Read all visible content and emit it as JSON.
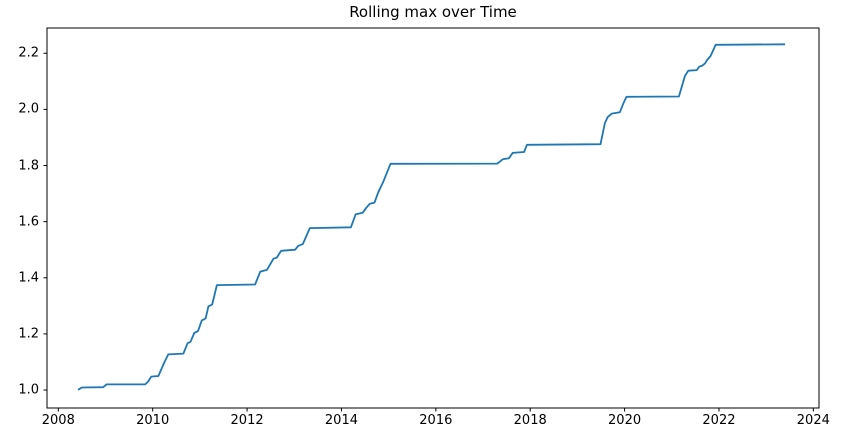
{
  "chart_data": {
    "type": "line",
    "title": "Rolling max over Time",
    "xlabel": "",
    "ylabel": "",
    "grid": false,
    "legend": "none",
    "x_ticks": [
      2008,
      2010,
      2012,
      2014,
      2016,
      2018,
      2020,
      2022,
      2024
    ],
    "y_ticks": [
      1.0,
      1.2,
      1.4,
      1.6,
      1.8,
      2.0,
      2.2
    ],
    "xlim": [
      2007.76,
      2024.12
    ],
    "ylim": [
      0.936,
      2.29
    ],
    "colors": {
      "line": "#1f77b4",
      "background": "#ffffff",
      "axes": "#000000",
      "tick_text": "#000000"
    },
    "series": [
      {
        "name": "rolling-max",
        "points": [
          [
            2008.42,
            1.001
          ],
          [
            2008.5,
            1.009
          ],
          [
            2008.95,
            1.01
          ],
          [
            2009.02,
            1.02
          ],
          [
            2009.84,
            1.02
          ],
          [
            2009.9,
            1.03
          ],
          [
            2009.97,
            1.048
          ],
          [
            2010.12,
            1.05
          ],
          [
            2010.25,
            1.1
          ],
          [
            2010.33,
            1.127
          ],
          [
            2010.65,
            1.13
          ],
          [
            2010.74,
            1.167
          ],
          [
            2010.8,
            1.172
          ],
          [
            2010.88,
            1.203
          ],
          [
            2010.96,
            1.21
          ],
          [
            2011.04,
            1.248
          ],
          [
            2011.12,
            1.255
          ],
          [
            2011.18,
            1.298
          ],
          [
            2011.26,
            1.305
          ],
          [
            2011.36,
            1.374
          ],
          [
            2012.17,
            1.376
          ],
          [
            2012.28,
            1.422
          ],
          [
            2012.42,
            1.428
          ],
          [
            2012.56,
            1.468
          ],
          [
            2012.63,
            1.472
          ],
          [
            2012.72,
            1.496
          ],
          [
            2013.02,
            1.5
          ],
          [
            2013.08,
            1.513
          ],
          [
            2013.18,
            1.52
          ],
          [
            2013.33,
            1.577
          ],
          [
            2014.2,
            1.58
          ],
          [
            2014.3,
            1.626
          ],
          [
            2014.45,
            1.632
          ],
          [
            2014.52,
            1.648
          ],
          [
            2014.6,
            1.664
          ],
          [
            2014.7,
            1.668
          ],
          [
            2014.78,
            1.705
          ],
          [
            2014.88,
            1.74
          ],
          [
            2015.04,
            1.806
          ],
          [
            2017.3,
            1.807
          ],
          [
            2017.42,
            1.822
          ],
          [
            2017.55,
            1.826
          ],
          [
            2017.63,
            1.845
          ],
          [
            2017.87,
            1.848
          ],
          [
            2017.93,
            1.874
          ],
          [
            2019.49,
            1.876
          ],
          [
            2019.58,
            1.95
          ],
          [
            2019.64,
            1.972
          ],
          [
            2019.73,
            1.985
          ],
          [
            2019.9,
            1.99
          ],
          [
            2019.97,
            2.02
          ],
          [
            2020.04,
            2.045
          ],
          [
            2021.15,
            2.046
          ],
          [
            2021.28,
            2.12
          ],
          [
            2021.35,
            2.138
          ],
          [
            2021.53,
            2.14
          ],
          [
            2021.58,
            2.152
          ],
          [
            2021.65,
            2.156
          ],
          [
            2021.7,
            2.163
          ],
          [
            2021.76,
            2.178
          ],
          [
            2021.82,
            2.19
          ],
          [
            2021.93,
            2.23
          ],
          [
            2023.4,
            2.232
          ]
        ]
      }
    ]
  }
}
